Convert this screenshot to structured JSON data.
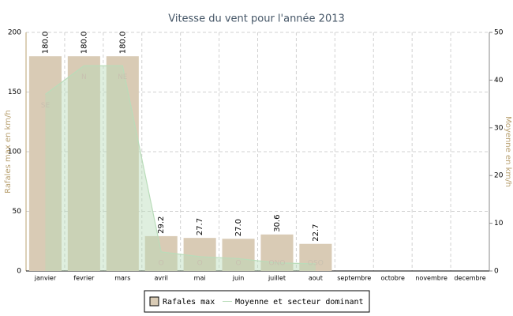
{
  "chart_data": {
    "type": "bar",
    "title": "Vitesse du vent pour l'année 2013",
    "y_label": "Rafales max en km/h",
    "y2_label": "Moyenne en km/h",
    "categories": [
      "janvier",
      "fevrier",
      "mars",
      "avril",
      "mai",
      "juin",
      "juillet",
      "aout",
      "septembre",
      "octobre",
      "novembre",
      "decembre"
    ],
    "series": [
      {
        "name": "Rafales max",
        "color": "#d9cbb5",
        "values": [
          180,
          180,
          180,
          29.2,
          27.7,
          27,
          30.6,
          22.7,
          null,
          null,
          null,
          null
        ],
        "value_labels": [
          "180.0",
          "180.0",
          "180.0",
          "29.2",
          "27.7",
          "27.0",
          "30.6",
          "22.7",
          null,
          null,
          null,
          null
        ]
      },
      {
        "name": "Moyenne et secteur dominant",
        "color": "#b9dcb9",
        "axis": "y2",
        "values": [
          37,
          43,
          43,
          4,
          3,
          2.6,
          1.7,
          1.5,
          null,
          null,
          null,
          null
        ],
        "labels": [
          "SE",
          "N",
          "NE",
          "O",
          "O",
          "O",
          "ONO",
          "OSO",
          null,
          null,
          null,
          null
        ]
      }
    ],
    "ylim": [
      0,
      200
    ],
    "yticks": [
      0,
      50,
      100,
      150,
      200
    ],
    "y2lim": [
      0,
      50
    ],
    "y2ticks": [
      0,
      10,
      20,
      30,
      40,
      50
    ],
    "grid": true
  }
}
